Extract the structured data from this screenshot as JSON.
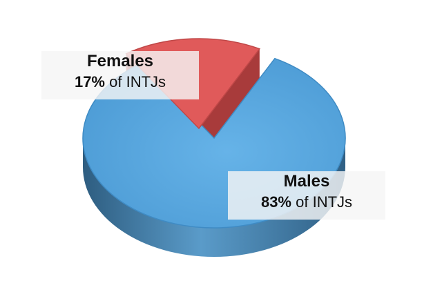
{
  "chart_data": {
    "type": "pie",
    "style": "3d-exploded",
    "slices": [
      {
        "name": "Males",
        "value": 83,
        "percent_label": "83%",
        "suffix": "of INTJs",
        "color": "#5dade2",
        "side_color": "#3d7fae"
      },
      {
        "name": "Females",
        "value": 17,
        "percent_label": "17%",
        "suffix": "of INTJs",
        "color": "#e05a5a",
        "side_color": "#a83b3b"
      }
    ]
  }
}
